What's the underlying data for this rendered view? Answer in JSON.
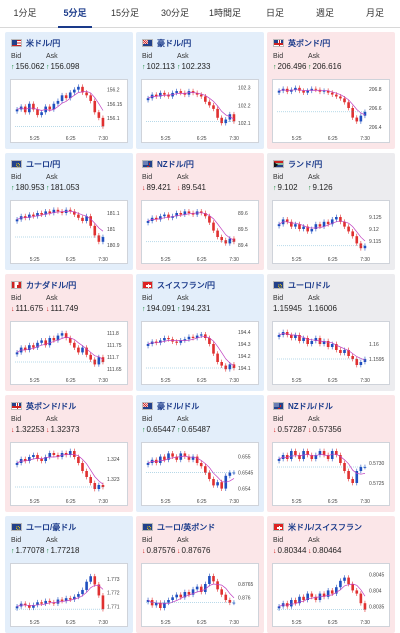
{
  "tabs": [
    {
      "label": "1分足",
      "active": false
    },
    {
      "label": "5分足",
      "active": true
    },
    {
      "label": "15分足",
      "active": false
    },
    {
      "label": "30分足",
      "active": false
    },
    {
      "label": "1時間足",
      "active": false
    },
    {
      "label": "日足",
      "active": false
    },
    {
      "label": "週足",
      "active": false
    },
    {
      "label": "月足",
      "active": false
    }
  ],
  "labels": {
    "bid": "Bid",
    "ask": "Ask"
  },
  "colors": {
    "accent": "#1a3a8a",
    "up_card": "#e3eefa",
    "down_card": "#fbe6e8",
    "flat_card": "#ececef",
    "candle_up": "#1f4fbf",
    "candle_down": "#e03030",
    "ma_line": "#c040c0",
    "arrow_up": "#1a8a3a",
    "arrow_down": "#d02020"
  },
  "cards": [
    {
      "name": "米ドル/円",
      "flag": "us-flag",
      "state": "up",
      "dir": "up",
      "bid": "156.062",
      "ask": "156.098",
      "chart": {
        "x_labels": [
          "5:25",
          "6:25",
          "7:30"
        ],
        "y_ticks": [
          "156.2",
          "156.15",
          "156.1"
        ],
        "ylim": [
          156.05,
          156.22
        ],
        "closes": [
          156.13,
          156.14,
          156.12,
          156.15,
          156.13,
          156.11,
          156.12,
          156.14,
          156.13,
          156.15,
          156.16,
          156.18,
          156.17,
          156.19,
          156.2,
          156.21,
          156.19,
          156.18,
          156.16,
          156.12,
          156.1,
          156.07
        ]
      }
    },
    {
      "name": "豪ドル/円",
      "flag": "au-flag",
      "state": "up",
      "dir": "up",
      "bid": "102.113",
      "ask": "102.233",
      "chart": {
        "x_labels": [
          "5:25",
          "6:25",
          "7:30"
        ],
        "y_ticks": [
          "102.3",
          "102.2",
          "102.1"
        ],
        "ylim": [
          102.05,
          102.32
        ],
        "closes": [
          102.24,
          102.26,
          102.25,
          102.27,
          102.26,
          102.25,
          102.27,
          102.28,
          102.27,
          102.26,
          102.28,
          102.27,
          102.26,
          102.25,
          102.22,
          102.2,
          102.18,
          102.13,
          102.1,
          102.12,
          102.15,
          102.11
        ]
      }
    },
    {
      "name": "英ポンド/円",
      "flag": "gb-flag",
      "state": "down",
      "dir": "up",
      "bid": "206.496",
      "ask": "206.616",
      "chart": {
        "x_labels": [
          "5:25",
          "6:25",
          "7:30"
        ],
        "y_ticks": [
          "206.8",
          "206.6",
          "206.4"
        ],
        "ylim": [
          206.35,
          206.85
        ],
        "closes": [
          206.78,
          206.8,
          206.77,
          206.79,
          206.81,
          206.78,
          206.76,
          206.78,
          206.8,
          206.79,
          206.77,
          206.78,
          206.76,
          206.74,
          206.72,
          206.7,
          206.66,
          206.6,
          206.5,
          206.46,
          206.52,
          206.56
        ]
      }
    },
    {
      "name": "ユーロ/円",
      "flag": "eu-flag",
      "state": "up",
      "dir": "up",
      "bid": "180.953",
      "ask": "181.053",
      "chart": {
        "x_labels": [
          "5:25",
          "6:25",
          "7:30"
        ],
        "y_ticks": [
          "181.1",
          "181",
          "180.9"
        ],
        "ylim": [
          180.85,
          181.15
        ],
        "closes": [
          181.06,
          181.08,
          181.07,
          181.09,
          181.08,
          181.1,
          181.09,
          181.11,
          181.1,
          181.12,
          181.11,
          181.1,
          181.12,
          181.11,
          181.09,
          181.07,
          181.05,
          181.08,
          181.02,
          180.96,
          180.92,
          180.95
        ]
      }
    },
    {
      "name": "NZドル/円",
      "flag": "nz-flag",
      "state": "down",
      "dir": "down",
      "bid": "89.421",
      "ask": "89.541",
      "chart": {
        "x_labels": [
          "5:25",
          "6:25",
          "7:30"
        ],
        "y_ticks": [
          "89.6",
          "89.5",
          "89.4"
        ],
        "ylim": [
          89.35,
          89.65
        ],
        "closes": [
          89.55,
          89.57,
          89.56,
          89.58,
          89.59,
          89.57,
          89.58,
          89.6,
          89.59,
          89.61,
          89.6,
          89.59,
          89.61,
          89.6,
          89.58,
          89.54,
          89.49,
          89.45,
          89.43,
          89.41,
          89.44,
          89.42
        ]
      }
    },
    {
      "name": "ランド/円",
      "flag": "za-flag",
      "state": "flat",
      "dir": "up",
      "bid": "9.102",
      "ask": "9.126",
      "chart": {
        "x_labels": [
          "5:25",
          "6:25",
          "7:30"
        ],
        "y_ticks": [
          "9.125",
          "9.12",
          "9.115"
        ],
        "ylim": [
          9.11,
          9.13
        ],
        "closes": [
          9.122,
          9.124,
          9.123,
          9.121,
          9.122,
          9.12,
          9.121,
          9.119,
          9.12,
          9.122,
          9.121,
          9.123,
          9.122,
          9.124,
          9.125,
          9.123,
          9.121,
          9.119,
          9.117,
          9.114,
          9.112,
          9.113
        ]
      }
    },
    {
      "name": "カナダドル/円",
      "flag": "ca-flag",
      "state": "down",
      "dir": "down",
      "bid": "111.675",
      "ask": "111.749",
      "chart": {
        "x_labels": [
          "5:25",
          "6:25",
          "7:30"
        ],
        "y_ticks": [
          "111.8",
          "111.75",
          "111.7",
          "111.65"
        ],
        "ylim": [
          111.63,
          111.83
        ],
        "closes": [
          111.72,
          111.74,
          111.73,
          111.75,
          111.74,
          111.76,
          111.77,
          111.75,
          111.78,
          111.77,
          111.79,
          111.8,
          111.78,
          111.76,
          111.74,
          111.72,
          111.74,
          111.71,
          111.69,
          111.67,
          111.7,
          111.68
        ]
      }
    },
    {
      "name": "スイスフラン/円",
      "flag": "ch-flag",
      "state": "up",
      "dir": "up",
      "bid": "194.091",
      "ask": "194.231",
      "chart": {
        "x_labels": [
          "5:25",
          "6:25",
          "7:30"
        ],
        "y_ticks": [
          "194.4",
          "194.3",
          "194.2",
          "194.1"
        ],
        "ylim": [
          194.05,
          194.45
        ],
        "closes": [
          194.3,
          194.32,
          194.31,
          194.33,
          194.35,
          194.34,
          194.32,
          194.31,
          194.33,
          194.34,
          194.36,
          194.35,
          194.37,
          194.38,
          194.35,
          194.3,
          194.22,
          194.15,
          194.12,
          194.09,
          194.13,
          194.1
        ]
      }
    },
    {
      "name": "ユーロ/ドル",
      "flag": "eu-flag",
      "state": "flat",
      "dir": "none",
      "bid": "1.15945",
      "ask": "1.16006",
      "chart": {
        "x_labels": [
          "5:25",
          "6:25",
          "7:30"
        ],
        "y_ticks": [
          "1.16",
          "1.1595"
        ],
        "ylim": [
          1.159,
          1.1606
        ],
        "closes": [
          1.1603,
          1.1604,
          1.1603,
          1.1602,
          1.1603,
          1.1601,
          1.1602,
          1.16,
          1.1601,
          1.1602,
          1.16,
          1.1601,
          1.1599,
          1.16,
          1.1598,
          1.1597,
          1.1598,
          1.1596,
          1.1595,
          1.1593,
          1.1594,
          1.1595
        ]
      }
    },
    {
      "name": "英ポンド/ドル",
      "flag": "gb-flag",
      "state": "down",
      "dir": "down",
      "bid": "1.32253",
      "ask": "1.32373",
      "chart": {
        "x_labels": [
          "5:25",
          "6:25",
          "7:30"
        ],
        "y_ticks": [
          "1.324",
          "1.323"
        ],
        "ylim": [
          1.3222,
          1.3246
        ],
        "closes": [
          1.3238,
          1.324,
          1.3239,
          1.3241,
          1.3242,
          1.324,
          1.3239,
          1.3241,
          1.3243,
          1.3242,
          1.3241,
          1.3243,
          1.3242,
          1.3244,
          1.3241,
          1.3238,
          1.3234,
          1.3231,
          1.3228,
          1.3225,
          1.3227,
          1.3226
        ]
      }
    },
    {
      "name": "豪ドル/ドル",
      "flag": "au-flag",
      "state": "up",
      "dir": "up",
      "bid": "0.65447",
      "ask": "0.65487",
      "chart": {
        "x_labels": [
          "5:25",
          "6:25",
          "7:30"
        ],
        "y_ticks": [
          "0.655",
          "0.6545",
          "0.654"
        ],
        "ylim": [
          0.6538,
          0.6553
        ],
        "closes": [
          0.6548,
          0.6549,
          0.6548,
          0.655,
          0.6549,
          0.6551,
          0.655,
          0.6549,
          0.6551,
          0.655,
          0.6549,
          0.655,
          0.6548,
          0.6547,
          0.6545,
          0.6543,
          0.6541,
          0.6542,
          0.654,
          0.6544,
          0.6545,
          0.6545
        ]
      }
    },
    {
      "name": "NZドル/ドル",
      "flag": "nz-flag",
      "state": "down",
      "dir": "down",
      "bid": "0.57287",
      "ask": "0.57356",
      "chart": {
        "x_labels": [
          "5:25",
          "6:25",
          "7:30"
        ],
        "y_ticks": [
          "0.5730",
          "0.5725"
        ],
        "ylim": [
          0.5722,
          0.5734
        ],
        "closes": [
          0.5731,
          0.5732,
          0.5731,
          0.5733,
          0.5732,
          0.5731,
          0.5733,
          0.5732,
          0.5731,
          0.5732,
          0.5733,
          0.5732,
          0.5731,
          0.5733,
          0.5732,
          0.573,
          0.5728,
          0.5726,
          0.5725,
          0.5728,
          0.5729,
          0.5729
        ]
      }
    },
    {
      "name": "ユーロ/豪ドル",
      "flag": "eu-flag",
      "state": "up",
      "dir": "up",
      "bid": "1.77078",
      "ask": "1.77218",
      "chart": {
        "x_labels": [
          "5:25",
          "6:25",
          "7:30"
        ],
        "y_ticks": [
          "1.773",
          "1.772",
          "1.771"
        ],
        "ylim": [
          1.7703,
          1.7738
        ],
        "closes": [
          1.771,
          1.7712,
          1.7711,
          1.7709,
          1.7711,
          1.7713,
          1.7712,
          1.7714,
          1.7713,
          1.7712,
          1.7715,
          1.7714,
          1.7716,
          1.7715,
          1.7717,
          1.7719,
          1.7722,
          1.7728,
          1.7732,
          1.7726,
          1.7718,
          1.7708
        ]
      }
    },
    {
      "name": "ユーロ/英ポンド",
      "flag": "eu-flag",
      "state": "down",
      "dir": "down",
      "bid": "0.87576",
      "ask": "0.87676",
      "chart": {
        "x_labels": [
          "5:25",
          "6:25",
          "7:30"
        ],
        "y_ticks": [
          "0.8765",
          "0.876"
        ],
        "ylim": [
          0.8753,
          0.8771
        ],
        "closes": [
          0.8759,
          0.8757,
          0.8758,
          0.8756,
          0.8758,
          0.8759,
          0.876,
          0.8761,
          0.876,
          0.8762,
          0.8761,
          0.8763,
          0.8764,
          0.8762,
          0.8765,
          0.8768,
          0.8766,
          0.8763,
          0.8761,
          0.8759,
          0.8758,
          0.8758
        ]
      }
    },
    {
      "name": "米ドル/スイスフラン",
      "flag": "ch-flag",
      "state": "down",
      "dir": "down",
      "bid": "0.80344",
      "ask": "0.80464",
      "chart": {
        "x_labels": [
          "5:25",
          "6:25",
          "7:30"
        ],
        "y_ticks": [
          "0.8045",
          "0.804",
          "0.8035"
        ],
        "ylim": [
          0.8032,
          0.8047
        ],
        "closes": [
          0.8035,
          0.8036,
          0.8035,
          0.8037,
          0.8036,
          0.8038,
          0.8037,
          0.8039,
          0.8038,
          0.8037,
          0.8039,
          0.8038,
          0.804,
          0.8039,
          0.8041,
          0.8043,
          0.8044,
          0.8042,
          0.804,
          0.8039,
          0.8036,
          0.8034
        ]
      }
    }
  ]
}
